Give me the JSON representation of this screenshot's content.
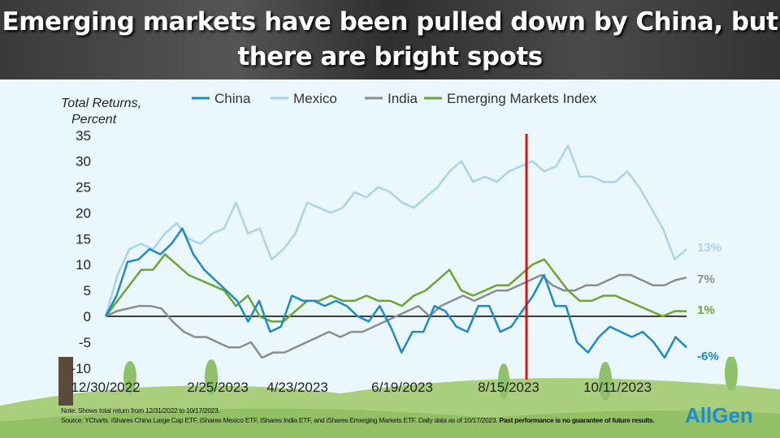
{
  "title": "Emerging markets have been pulled down by China, but there are bright spots",
  "note": "Note: Shows total return from 12/31/2022 to 10/17/2023.",
  "source": "Source: YCharts. iShares China Large Cap ETF, iShares Mexico ETF, iShares India ETF, and iShares Emerging Markets ETF. Daily data as of 10/17/2023.",
  "disclaimer": "Past performance is no guarantee of future results.",
  "logo": "AllGen",
  "chart_data": {
    "type": "line",
    "ylabel_1": "Total Returns,",
    "ylabel_2": "Percent",
    "ylim": [
      -10,
      35
    ],
    "yticks": [
      35,
      30,
      25,
      20,
      15,
      10,
      5,
      0,
      -5,
      -10
    ],
    "xticks": [
      "12/30/2022",
      "2/25/2023",
      "4/23/2023",
      "6/19/2023",
      "8/15/2023",
      "10/11/2023"
    ],
    "marker_date": "8/10/2023",
    "series": [
      {
        "name": "China",
        "color": "#1e88c8",
        "end_label": "-6%",
        "values": [
          0,
          4,
          10.5,
          11,
          13,
          12,
          14,
          17,
          12,
          9,
          7,
          5,
          3,
          -1,
          3,
          -3,
          -2,
          4,
          3,
          3,
          2,
          3,
          2,
          0,
          -1,
          2,
          -2,
          -7,
          -3,
          -3,
          2,
          1,
          -2,
          -3,
          2,
          2,
          -3,
          -2,
          1,
          4,
          8,
          2,
          2,
          -5,
          -7,
          -4,
          -2,
          -3,
          -4,
          -3,
          -5,
          -8,
          -4,
          -6
        ]
      },
      {
        "name": "Mexico",
        "color": "#a8d4ec",
        "end_label": "13%",
        "values": [
          0,
          8,
          13,
          14,
          13,
          16,
          18,
          15,
          14,
          16,
          17,
          22,
          16,
          17,
          11,
          13,
          16,
          22,
          21,
          20,
          21,
          24,
          23,
          25,
          24,
          22,
          21,
          23,
          25,
          28,
          30,
          26,
          27,
          26,
          28,
          29,
          30,
          28,
          29,
          33,
          27,
          27,
          26,
          26,
          28,
          25,
          21,
          17,
          11,
          13
        ]
      },
      {
        "name": "India",
        "color": "#8c8c8c",
        "end_label": "7%",
        "values": [
          0,
          1,
          1.5,
          2,
          2,
          1.5,
          -1,
          -3,
          -4,
          -4,
          -5,
          -6,
          -6,
          -5,
          -8,
          -7,
          -7,
          -6,
          -5,
          -4,
          -3,
          -4,
          -3,
          -3,
          -2,
          -1,
          0,
          1,
          2,
          0,
          2,
          3,
          4,
          3,
          4,
          5,
          5,
          6,
          7,
          8,
          6,
          5,
          5,
          6,
          6,
          7,
          8,
          8,
          7,
          6,
          6,
          7,
          7.5
        ]
      },
      {
        "name": "Emerging Markets Index",
        "color": "#6aa532",
        "end_label": "1%",
        "values": [
          0,
          3,
          6,
          9,
          9,
          12,
          10,
          8,
          7,
          6,
          5,
          2,
          4,
          0,
          -1,
          -1,
          1,
          3,
          3,
          4,
          3,
          3,
          4,
          3,
          3,
          2,
          4,
          5,
          7,
          9,
          5,
          4,
          5,
          6,
          6,
          8,
          10,
          11,
          8,
          5,
          3,
          3,
          4,
          4,
          3,
          2,
          1,
          0,
          1,
          1
        ]
      }
    ]
  }
}
